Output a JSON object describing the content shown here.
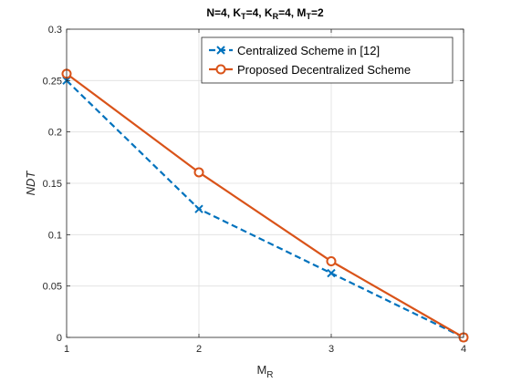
{
  "chart_data": {
    "type": "line",
    "title": "N=4, K",
    "title_parts": [
      {
        "t": "N=4, K",
        "sub": false
      },
      {
        "t": "T",
        "sub": true
      },
      {
        "t": "=4, K",
        "sub": false
      },
      {
        "t": "R",
        "sub": true
      },
      {
        "t": "=4, M",
        "sub": false
      },
      {
        "t": "T",
        "sub": true
      },
      {
        "t": "=2",
        "sub": false
      }
    ],
    "xlabel": "M",
    "xlabel_sub": "R",
    "ylabel": "NDT",
    "x": [
      1,
      2,
      3,
      4
    ],
    "xlim": [
      1,
      4
    ],
    "ylim": [
      0,
      0.3
    ],
    "xticks": [
      1,
      2,
      3,
      4
    ],
    "yticks": [
      0,
      0.05,
      0.1,
      0.15,
      0.2,
      0.25,
      0.3
    ],
    "ytick_labels": [
      "0",
      "0.05",
      "0.1",
      "0.15",
      "0.2",
      "0.25",
      "0.3"
    ],
    "grid": true,
    "legend_position": "top-right",
    "series": [
      {
        "name": "Centralized Scheme in [12]",
        "values": [
          0.25,
          0.125,
          0.0625,
          0
        ],
        "color": "#0072BD",
        "style": "dashed",
        "marker": "x"
      },
      {
        "name": "Proposed Decentralized Scheme",
        "values": [
          0.2566,
          0.1607,
          0.0741,
          0
        ],
        "color": "#D95319",
        "style": "solid",
        "marker": "o"
      }
    ]
  }
}
